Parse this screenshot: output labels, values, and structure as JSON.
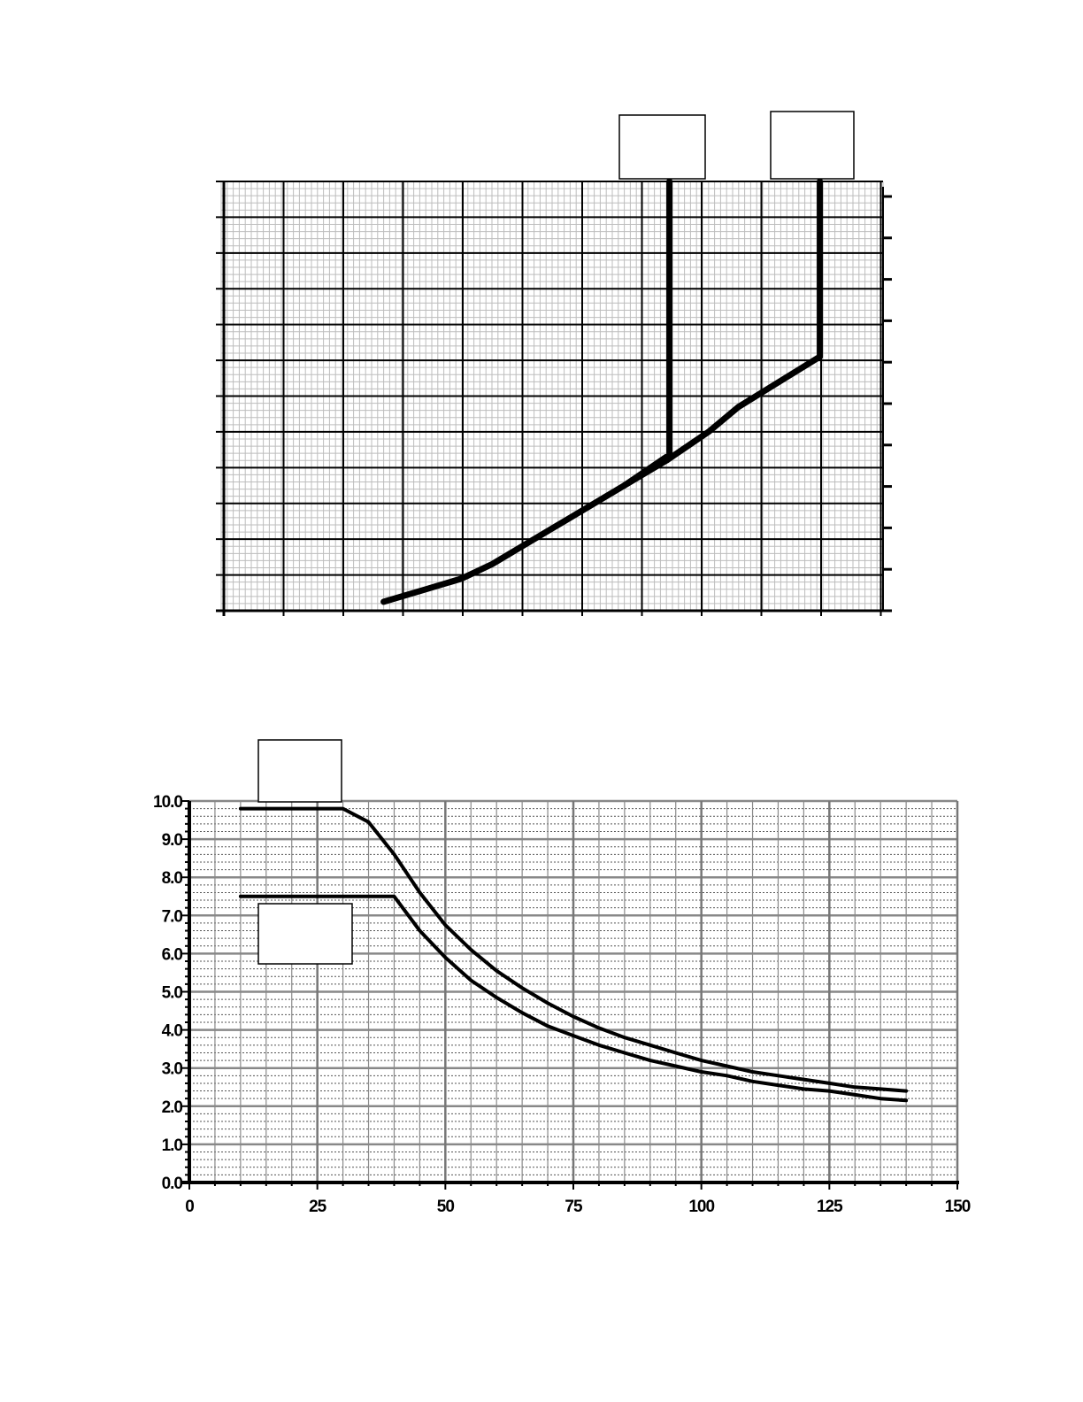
{
  "chart_data": [
    {
      "type": "line",
      "title": "",
      "xlabel": "",
      "ylabel": "",
      "xlim": [
        0,
        110
      ],
      "ylim": [
        0,
        12
      ],
      "x_tick_labels": [],
      "y_tick_labels": [],
      "grid": true,
      "legend_boxes": [
        "",
        ""
      ],
      "series": [
        {
          "points": [
            [
              27,
              0.25
            ],
            [
              34,
              0.6
            ],
            [
              40,
              0.9
            ],
            [
              45,
              1.3
            ],
            [
              50,
              1.8
            ],
            [
              56,
              2.4
            ],
            [
              62,
              3.0
            ],
            [
              67,
              3.5
            ],
            [
              74,
              4.2
            ],
            [
              81,
              5.0
            ],
            [
              86,
              5.7
            ],
            [
              99.5,
              7.1
            ],
            [
              99.5,
              12
            ]
          ]
        },
        {
          "points": [
            [
              67,
              3.5
            ],
            [
              74,
              4.3
            ],
            [
              74.5,
              4.3
            ],
            [
              74.5,
              12
            ]
          ]
        }
      ]
    },
    {
      "type": "line",
      "title": "",
      "xlabel": "",
      "ylabel": "",
      "xlim": [
        0,
        150
      ],
      "ylim": [
        0,
        10
      ],
      "x_tick_labels": [
        "0",
        "25",
        "50",
        "75",
        "100",
        "125",
        "150"
      ],
      "y_tick_labels": [
        "0.0",
        "1.0",
        "2.0",
        "3.0",
        "4.0",
        "5.0",
        "6.0",
        "7.0",
        "8.0",
        "9.0",
        "10.0"
      ],
      "grid": true,
      "legend_boxes": [
        "",
        ""
      ],
      "series": [
        {
          "points": [
            [
              10,
              9.8
            ],
            [
              30,
              9.8
            ],
            [
              35,
              9.45
            ],
            [
              40,
              8.6
            ],
            [
              45,
              7.6
            ],
            [
              50,
              6.75
            ],
            [
              55,
              6.1
            ],
            [
              60,
              5.55
            ],
            [
              65,
              5.1
            ],
            [
              70,
              4.7
            ],
            [
              75,
              4.35
            ],
            [
              80,
              4.05
            ],
            [
              85,
              3.8
            ],
            [
              90,
              3.6
            ],
            [
              95,
              3.4
            ],
            [
              100,
              3.2
            ],
            [
              105,
              3.05
            ],
            [
              110,
              2.9
            ],
            [
              115,
              2.8
            ],
            [
              120,
              2.7
            ],
            [
              125,
              2.6
            ],
            [
              130,
              2.5
            ],
            [
              135,
              2.45
            ],
            [
              140,
              2.4
            ]
          ]
        },
        {
          "points": [
            [
              10,
              7.5
            ],
            [
              40,
              7.5
            ],
            [
              45,
              6.6
            ],
            [
              50,
              5.9
            ],
            [
              55,
              5.3
            ],
            [
              60,
              4.85
            ],
            [
              65,
              4.45
            ],
            [
              70,
              4.1
            ],
            [
              75,
              3.85
            ],
            [
              80,
              3.6
            ],
            [
              85,
              3.4
            ],
            [
              90,
              3.2
            ],
            [
              95,
              3.05
            ],
            [
              100,
              2.9
            ],
            [
              105,
              2.8
            ],
            [
              110,
              2.65
            ],
            [
              115,
              2.55
            ],
            [
              120,
              2.45
            ],
            [
              125,
              2.4
            ],
            [
              130,
              2.3
            ],
            [
              135,
              2.2
            ],
            [
              140,
              2.15
            ]
          ]
        }
      ]
    }
  ]
}
